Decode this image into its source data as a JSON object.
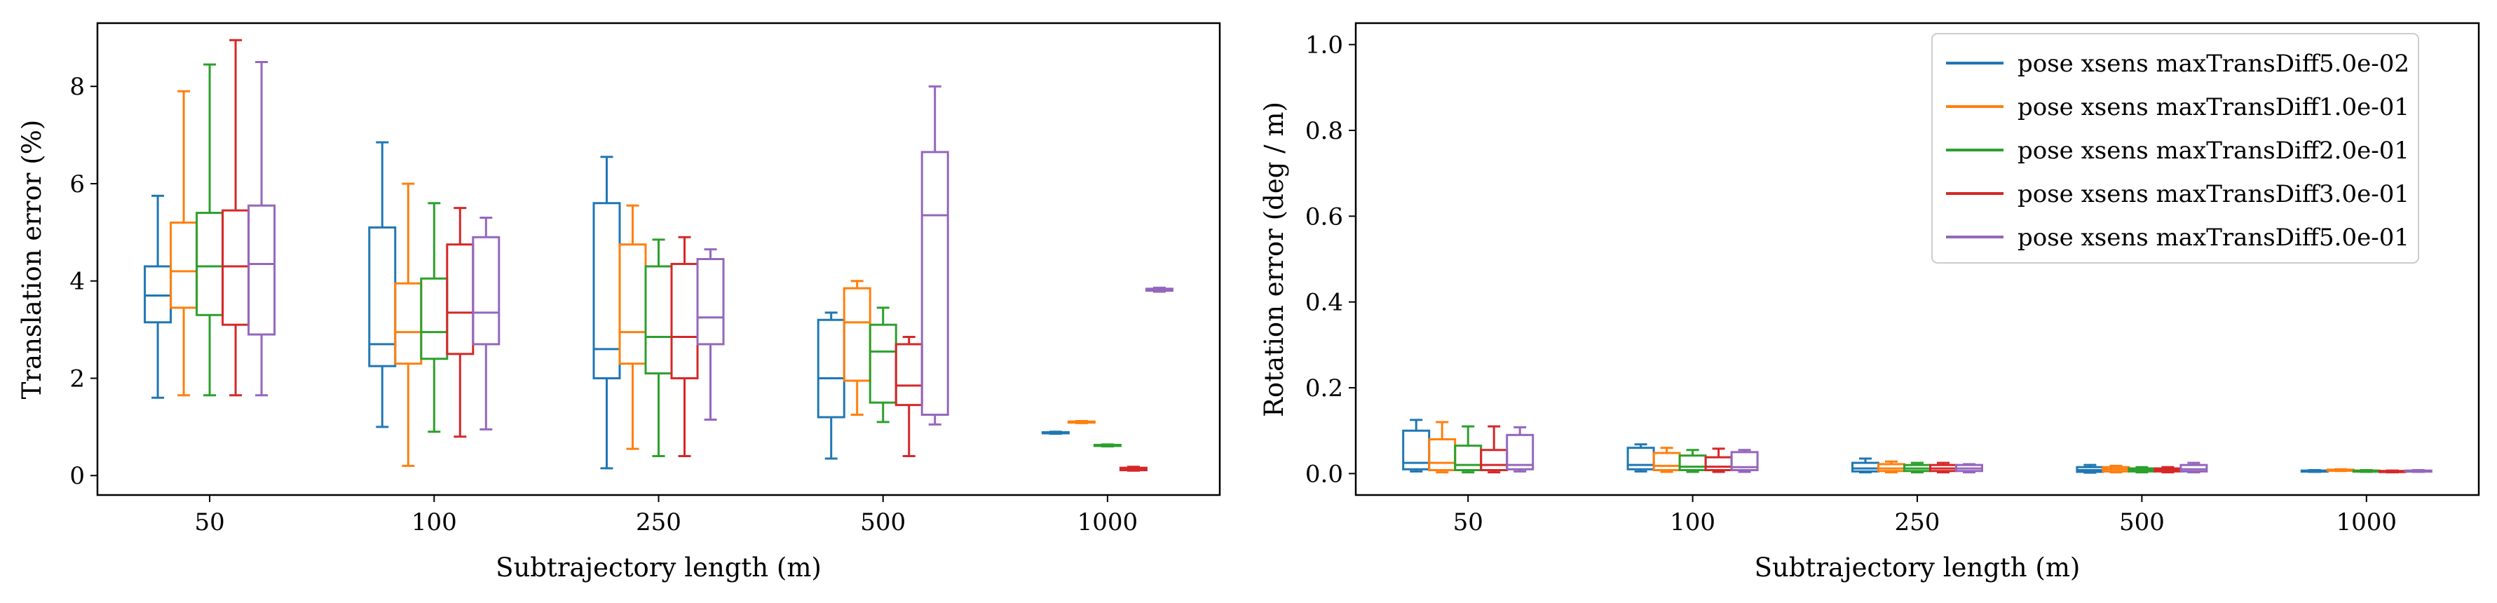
{
  "chart_data": [
    {
      "type": "box",
      "xlabel": "Subtrajectory length (m)",
      "ylabel": "Translation error (%)",
      "categories": [
        "50",
        "100",
        "250",
        "500",
        "1000"
      ],
      "ylim": [
        -0.4,
        9.3
      ],
      "yticks": [
        0,
        2,
        4,
        6,
        8
      ],
      "grid": false,
      "series": [
        {
          "name": "pose xsens maxTransDiff5.0e-02",
          "color": "#1f77b4",
          "boxes": [
            {
              "whislo": 1.6,
              "q1": 3.15,
              "med": 3.7,
              "q3": 4.3,
              "whishi": 5.75
            },
            {
              "whislo": 1.0,
              "q1": 2.25,
              "med": 2.7,
              "q3": 5.1,
              "whishi": 6.85
            },
            {
              "whislo": 0.15,
              "q1": 2.0,
              "med": 2.6,
              "q3": 5.6,
              "whishi": 6.55
            },
            {
              "whislo": 0.35,
              "q1": 1.2,
              "med": 2.0,
              "q3": 3.2,
              "whishi": 3.35
            },
            {
              "whislo": 0.86,
              "q1": 0.87,
              "med": 0.88,
              "q3": 0.89,
              "whishi": 0.9
            }
          ]
        },
        {
          "name": "pose xsens maxTransDiff1.0e-01",
          "color": "#ff7f0e",
          "boxes": [
            {
              "whislo": 1.65,
              "q1": 3.45,
              "med": 4.2,
              "q3": 5.2,
              "whishi": 7.9
            },
            {
              "whislo": 0.2,
              "q1": 2.3,
              "med": 2.95,
              "q3": 3.95,
              "whishi": 6.0
            },
            {
              "whislo": 0.55,
              "q1": 2.3,
              "med": 2.95,
              "q3": 4.75,
              "whishi": 5.55
            },
            {
              "whislo": 1.25,
              "q1": 1.95,
              "med": 3.15,
              "q3": 3.85,
              "whishi": 4.0
            },
            {
              "whislo": 1.08,
              "q1": 1.09,
              "med": 1.1,
              "q3": 1.11,
              "whishi": 1.12
            }
          ]
        },
        {
          "name": "pose xsens maxTransDiff2.0e-01",
          "color": "#2ca02c",
          "boxes": [
            {
              "whislo": 1.65,
              "q1": 3.3,
              "med": 4.3,
              "q3": 5.4,
              "whishi": 8.45
            },
            {
              "whislo": 0.9,
              "q1": 2.4,
              "med": 2.95,
              "q3": 4.05,
              "whishi": 5.6
            },
            {
              "whislo": 0.4,
              "q1": 2.1,
              "med": 2.85,
              "q3": 4.3,
              "whishi": 4.85
            },
            {
              "whislo": 1.1,
              "q1": 1.5,
              "med": 2.55,
              "q3": 3.1,
              "whishi": 3.45
            },
            {
              "whislo": 0.6,
              "q1": 0.61,
              "med": 0.62,
              "q3": 0.63,
              "whishi": 0.64
            }
          ]
        },
        {
          "name": "pose xsens maxTransDiff3.0e-01",
          "color": "#d62728",
          "boxes": [
            {
              "whislo": 1.65,
              "q1": 3.1,
              "med": 4.3,
              "q3": 5.45,
              "whishi": 8.95
            },
            {
              "whislo": 0.8,
              "q1": 2.5,
              "med": 3.35,
              "q3": 4.75,
              "whishi": 5.5
            },
            {
              "whislo": 0.4,
              "q1": 2.0,
              "med": 2.85,
              "q3": 4.35,
              "whishi": 4.9
            },
            {
              "whislo": 0.4,
              "q1": 1.45,
              "med": 1.85,
              "q3": 2.7,
              "whishi": 2.85
            },
            {
              "whislo": 0.1,
              "q1": 0.11,
              "med": 0.13,
              "q3": 0.16,
              "whishi": 0.18
            }
          ]
        },
        {
          "name": "pose xsens maxTransDiff5.0e-01",
          "color": "#9467bd",
          "boxes": [
            {
              "whislo": 1.65,
              "q1": 2.9,
              "med": 4.35,
              "q3": 5.55,
              "whishi": 8.5
            },
            {
              "whislo": 0.95,
              "q1": 2.7,
              "med": 3.35,
              "q3": 4.9,
              "whishi": 5.3
            },
            {
              "whislo": 1.15,
              "q1": 2.7,
              "med": 3.25,
              "q3": 4.45,
              "whishi": 4.65
            },
            {
              "whislo": 1.05,
              "q1": 1.25,
              "med": 5.35,
              "q3": 6.65,
              "whishi": 8.0
            },
            {
              "whislo": 3.78,
              "q1": 3.8,
              "med": 3.82,
              "q3": 3.84,
              "whishi": 3.86
            }
          ]
        }
      ]
    },
    {
      "type": "box",
      "xlabel": "Subtrajectory length (m)",
      "ylabel": "Rotation error (deg / m)",
      "categories": [
        "50",
        "100",
        "250",
        "500",
        "1000"
      ],
      "ylim": [
        -0.05,
        1.05
      ],
      "yticks": [
        "0.0",
        "0.2",
        "0.4",
        "0.6",
        "0.8",
        "1.0"
      ],
      "grid": false,
      "legend_position": "top-right",
      "series": [
        {
          "name": "pose xsens maxTransDiff5.0e-02",
          "color": "#1f77b4",
          "boxes": [
            {
              "whislo": 0.005,
              "q1": 0.01,
              "med": 0.025,
              "q3": 0.1,
              "whishi": 0.125
            },
            {
              "whislo": 0.005,
              "q1": 0.01,
              "med": 0.02,
              "q3": 0.06,
              "whishi": 0.068
            },
            {
              "whislo": 0.003,
              "q1": 0.005,
              "med": 0.012,
              "q3": 0.025,
              "whishi": 0.035
            },
            {
              "whislo": 0.002,
              "q1": 0.004,
              "med": 0.008,
              "q3": 0.015,
              "whishi": 0.02
            },
            {
              "whislo": 0.004,
              "q1": 0.005,
              "med": 0.006,
              "q3": 0.007,
              "whishi": 0.008
            }
          ]
        },
        {
          "name": "pose xsens maxTransDiff1.0e-01",
          "color": "#ff7f0e",
          "boxes": [
            {
              "whislo": 0.003,
              "q1": 0.008,
              "med": 0.025,
              "q3": 0.08,
              "whishi": 0.12
            },
            {
              "whislo": 0.004,
              "q1": 0.008,
              "med": 0.018,
              "q3": 0.048,
              "whishi": 0.06
            },
            {
              "whislo": 0.003,
              "q1": 0.006,
              "med": 0.012,
              "q3": 0.022,
              "whishi": 0.028
            },
            {
              "whislo": 0.003,
              "q1": 0.005,
              "med": 0.01,
              "q3": 0.015,
              "whishi": 0.018
            },
            {
              "whislo": 0.006,
              "q1": 0.007,
              "med": 0.008,
              "q3": 0.009,
              "whishi": 0.01
            }
          ]
        },
        {
          "name": "pose xsens maxTransDiff2.0e-01",
          "color": "#2ca02c",
          "boxes": [
            {
              "whislo": 0.003,
              "q1": 0.008,
              "med": 0.02,
              "q3": 0.065,
              "whishi": 0.11
            },
            {
              "whislo": 0.004,
              "q1": 0.008,
              "med": 0.016,
              "q3": 0.042,
              "whishi": 0.055
            },
            {
              "whislo": 0.003,
              "q1": 0.006,
              "med": 0.012,
              "q3": 0.02,
              "whishi": 0.025
            },
            {
              "whislo": 0.003,
              "q1": 0.005,
              "med": 0.008,
              "q3": 0.012,
              "whishi": 0.015
            },
            {
              "whislo": 0.004,
              "q1": 0.005,
              "med": 0.006,
              "q3": 0.007,
              "whishi": 0.008
            }
          ]
        },
        {
          "name": "pose xsens maxTransDiff3.0e-01",
          "color": "#d62728",
          "boxes": [
            {
              "whislo": 0.003,
              "q1": 0.008,
              "med": 0.02,
              "q3": 0.055,
              "whishi": 0.11
            },
            {
              "whislo": 0.004,
              "q1": 0.008,
              "med": 0.016,
              "q3": 0.038,
              "whishi": 0.058
            },
            {
              "whislo": 0.003,
              "q1": 0.006,
              "med": 0.012,
              "q3": 0.02,
              "whishi": 0.025
            },
            {
              "whislo": 0.003,
              "q1": 0.005,
              "med": 0.008,
              "q3": 0.012,
              "whishi": 0.015
            },
            {
              "whislo": 0.003,
              "q1": 0.004,
              "med": 0.005,
              "q3": 0.006,
              "whishi": 0.007
            }
          ]
        },
        {
          "name": "pose xsens maxTransDiff5.0e-01",
          "color": "#9467bd",
          "boxes": [
            {
              "whislo": 0.005,
              "q1": 0.01,
              "med": 0.02,
              "q3": 0.09,
              "whishi": 0.108
            },
            {
              "whislo": 0.004,
              "q1": 0.008,
              "med": 0.015,
              "q3": 0.05,
              "whishi": 0.055
            },
            {
              "whislo": 0.003,
              "q1": 0.006,
              "med": 0.012,
              "q3": 0.02,
              "whishi": 0.022
            },
            {
              "whislo": 0.003,
              "q1": 0.005,
              "med": 0.01,
              "q3": 0.02,
              "whishi": 0.025
            },
            {
              "whislo": 0.004,
              "q1": 0.005,
              "med": 0.006,
              "q3": 0.007,
              "whishi": 0.008
            }
          ]
        }
      ]
    }
  ]
}
